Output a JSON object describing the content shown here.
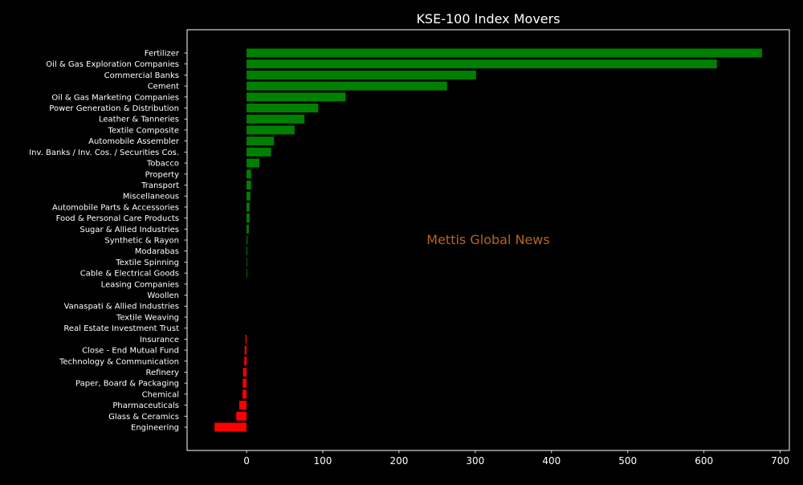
{
  "chart_data": {
    "type": "bar",
    "orientation": "horizontal",
    "title": "KSE-100 Index Movers",
    "watermark": "Mettis Global News",
    "xlabel": "",
    "ylabel": "",
    "xlim": [
      -78,
      712
    ],
    "xticks": [
      0,
      100,
      200,
      300,
      400,
      500,
      600,
      700
    ],
    "grid": false,
    "legend": "none",
    "colors": {
      "positive": "#008000",
      "negative": "#ff0000",
      "background": "#000000",
      "axes": "#ffffff",
      "text": "#ffffff",
      "watermark": "#b5651d"
    },
    "categories": [
      "Fertilizer",
      "Oil & Gas Exploration Companies",
      "Commercial Banks",
      "Cement",
      "Oil & Gas Marketing Companies",
      "Power Generation & Distribution",
      "Leather & Tanneries",
      "Textile Composite",
      "Automobile Assembler",
      "Inv. Banks / Inv. Cos. / Securities Cos.",
      "Tobacco",
      "Property",
      "Transport",
      "Miscellaneous",
      "Automobile Parts & Accessories",
      "Food & Personal Care Products",
      "Sugar & Allied Industries",
      "Synthetic & Rayon",
      "Modarabas",
      "Textile Spinning",
      "Cable & Electrical Goods",
      "Leasing Companies",
      "Woollen",
      "Vanaspati & Allied Industries",
      "Textile Weaving",
      "Real Estate Investment Trust",
      "Insurance",
      "Close - End Mutual Fund",
      "Technology & Communication",
      "Refinery",
      "Paper, Board & Packaging",
      "Chemical",
      "Pharmaceuticals",
      "Glass & Ceramics",
      "Engineering"
    ],
    "values": [
      676,
      617,
      301,
      263,
      130,
      94,
      76,
      63,
      36,
      32,
      17,
      6,
      6,
      5,
      4,
      4,
      3,
      1.2,
      1.0,
      0.8,
      0.6,
      0,
      0,
      0,
      0,
      0,
      -1.5,
      -2.5,
      -3,
      -4.5,
      -5,
      -5.5,
      -9.5,
      -13.5,
      -42
    ]
  }
}
